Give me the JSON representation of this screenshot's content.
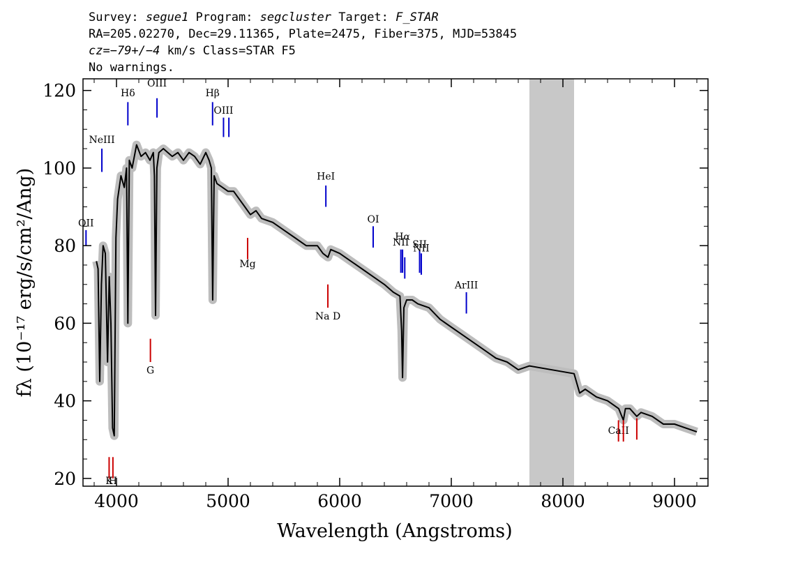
{
  "header": {
    "line1": [
      {
        "text": "Survey: ",
        "italic": false
      },
      {
        "text": "segue1",
        "italic": true
      },
      {
        "text": " Program: ",
        "italic": false
      },
      {
        "text": "segcluster",
        "italic": true
      },
      {
        "text": " Target: ",
        "italic": false
      },
      {
        "text": "F_STAR",
        "italic": true
      }
    ],
    "line2": "RA=205.02270, Dec=29.11365, Plate=2475, Fiber=375, MJD=53845",
    "line3": [
      {
        "text": "cz=",
        "italic": true
      },
      {
        "text": "−79+/−4",
        "italic": true
      },
      {
        "text": " km/s Class=STAR F5",
        "italic": false
      }
    ],
    "line4": "No warnings."
  },
  "chart_data": {
    "type": "line",
    "xlabel": "Wavelength (Angstroms)",
    "ylabel": "fλ (10⁻¹⁷ erg/s/cm²/Ang)",
    "xlim": [
      3700,
      9300
    ],
    "ylim": [
      18,
      123
    ],
    "x_ticks": [
      4000,
      5000,
      6000,
      7000,
      8000,
      9000
    ],
    "y_ticks": [
      20,
      40,
      60,
      80,
      100,
      120
    ],
    "masked_region": [
      7700,
      8100
    ],
    "series": [
      {
        "role": "flux",
        "color": "#000000",
        "x": [
          3820,
          3835,
          3850,
          3865,
          3880,
          3900,
          3920,
          3935,
          3950,
          3965,
          3980,
          3995,
          4010,
          4040,
          4070,
          4090,
          4102,
          4115,
          4140,
          4180,
          4220,
          4260,
          4300,
          4330,
          4340,
          4350,
          4362,
          4380,
          4420,
          4460,
          4500,
          4550,
          4600,
          4650,
          4700,
          4750,
          4800,
          4830,
          4850,
          4862,
          4875,
          4900,
          4950,
          5000,
          5050,
          5100,
          5150,
          5200,
          5250,
          5300,
          5400,
          5500,
          5600,
          5700,
          5800,
          5850,
          5895,
          5920,
          6000,
          6100,
          6200,
          6300,
          6400,
          6480,
          6540,
          6555,
          6563,
          6575,
          6600,
          6650,
          6700,
          6800,
          6900,
          7000,
          7100,
          7200,
          7300,
          7400,
          7500,
          7600,
          7700,
          8100,
          8150,
          8200,
          8300,
          8400,
          8500,
          8542,
          8560,
          8600,
          8662,
          8700,
          8800,
          8900,
          9000,
          9100,
          9200
        ],
        "y": [
          76,
          74,
          45,
          70,
          80,
          78,
          50,
          72,
          60,
          33,
          31,
          82,
          92,
          98,
          95,
          100,
          60,
          102,
          100,
          106,
          103,
          104,
          102,
          104,
          98,
          62,
          100,
          104,
          105,
          104,
          103,
          104,
          102,
          104,
          103,
          101,
          104,
          102,
          100,
          66,
          98,
          96,
          95,
          94,
          94,
          92,
          90,
          88,
          89,
          87,
          86,
          84,
          82,
          80,
          80,
          78,
          77,
          79,
          78,
          76,
          74,
          72,
          70,
          68,
          67,
          58,
          46,
          64,
          66,
          66,
          65,
          64,
          61,
          59,
          57,
          55,
          53,
          51,
          50,
          48,
          49,
          47,
          42,
          43,
          41,
          40,
          38,
          35,
          38,
          38,
          36,
          37,
          36,
          34,
          34,
          33,
          32
        ]
      }
    ],
    "line_markers": [
      {
        "label": "OII",
        "x": 3727,
        "type": "emission",
        "y_label": 85,
        "y_top": 84,
        "y_bottom": 80
      },
      {
        "label": "NeIII",
        "x": 3869,
        "type": "emission",
        "y_label": 106.5,
        "y_top": 105,
        "y_bottom": 99
      },
      {
        "label": "Hδ",
        "x": 4102,
        "type": "emission",
        "y_label": 118.5,
        "y_top": 117,
        "y_bottom": 111
      },
      {
        "label": "OIII",
        "x": 4363,
        "type": "emission",
        "y_label": 121,
        "y_top": 118,
        "y_bottom": 113
      },
      {
        "label": "Hβ",
        "x": 4861,
        "type": "emission",
        "y_label": 118.5,
        "y_top": 117,
        "y_bottom": 111
      },
      {
        "label": "OIII",
        "x": 4959,
        "type": "emission",
        "y_label": 114,
        "y_top": 113,
        "y_bottom": 108
      },
      {
        "label": "OIII",
        "x": 5007,
        "type": "emission",
        "y_label": null,
        "y_top": 113,
        "y_bottom": 108
      },
      {
        "label": "HeI",
        "x": 5876,
        "type": "emission",
        "y_label": 97,
        "y_top": 95.5,
        "y_bottom": 90
      },
      {
        "label": "OI",
        "x": 6300,
        "type": "emission",
        "y_label": 86,
        "y_top": 85,
        "y_bottom": 79.5
      },
      {
        "label": "NII",
        "x": 6548,
        "type": "emission",
        "y_label": 80,
        "y_top": 79,
        "y_bottom": 73
      },
      {
        "label": "Hα",
        "x": 6563,
        "type": "emission",
        "y_label": 81.5,
        "y_top": 79,
        "y_bottom": 73
      },
      {
        "label": "NII",
        "x": 6583,
        "type": "emission",
        "y_label": null,
        "y_top": 77,
        "y_bottom": 71.5
      },
      {
        "label": "SII",
        "x": 6716,
        "type": "emission",
        "y_label": 79.5,
        "y_top": 79,
        "y_bottom": 73
      },
      {
        "label": "NII",
        "x": 6731,
        "type": "emission",
        "y_label": 78.5,
        "y_top": 78,
        "y_bottom": 72.5
      },
      {
        "label": "ArIII",
        "x": 7135,
        "type": "emission",
        "y_label": 69,
        "y_top": 68,
        "y_bottom": 62.5
      },
      {
        "label": "K",
        "x": 3934,
        "type": "absorption",
        "y_label": 18.5,
        "y_top": 25.5,
        "y_bottom": 20
      },
      {
        "label": "H",
        "x": 3968,
        "type": "absorption",
        "y_label": 18.5,
        "y_top": 25.5,
        "y_bottom": 20
      },
      {
        "label": "G",
        "x": 4304,
        "type": "absorption",
        "y_label": 47,
        "y_top": 56,
        "y_bottom": 50
      },
      {
        "label": "Mg",
        "x": 5175,
        "type": "absorption",
        "y_label": 74.5,
        "y_top": 82,
        "y_bottom": 76.5
      },
      {
        "label": "Na D",
        "x": 5894,
        "type": "absorption",
        "y_label": 61,
        "y_top": 70,
        "y_bottom": 64
      },
      {
        "label": "CaII",
        "x": 8498,
        "type": "absorption",
        "y_label": 31.5,
        "y_top": 35,
        "y_bottom": 29.5
      },
      {
        "label": "CaII",
        "x": 8542,
        "type": "absorption",
        "y_label": null,
        "y_top": 35,
        "y_bottom": 29.5
      },
      {
        "label": "CaII",
        "x": 8662,
        "type": "absorption",
        "y_label": null,
        "y_top": 35.5,
        "y_bottom": 30
      }
    ],
    "colors": {
      "flux": "#000000",
      "noise_band": "#bdbdbd",
      "masked_region": "#c8c8c8",
      "emission_marker": "#0000cc",
      "absorption_marker": "#cc0000"
    }
  }
}
